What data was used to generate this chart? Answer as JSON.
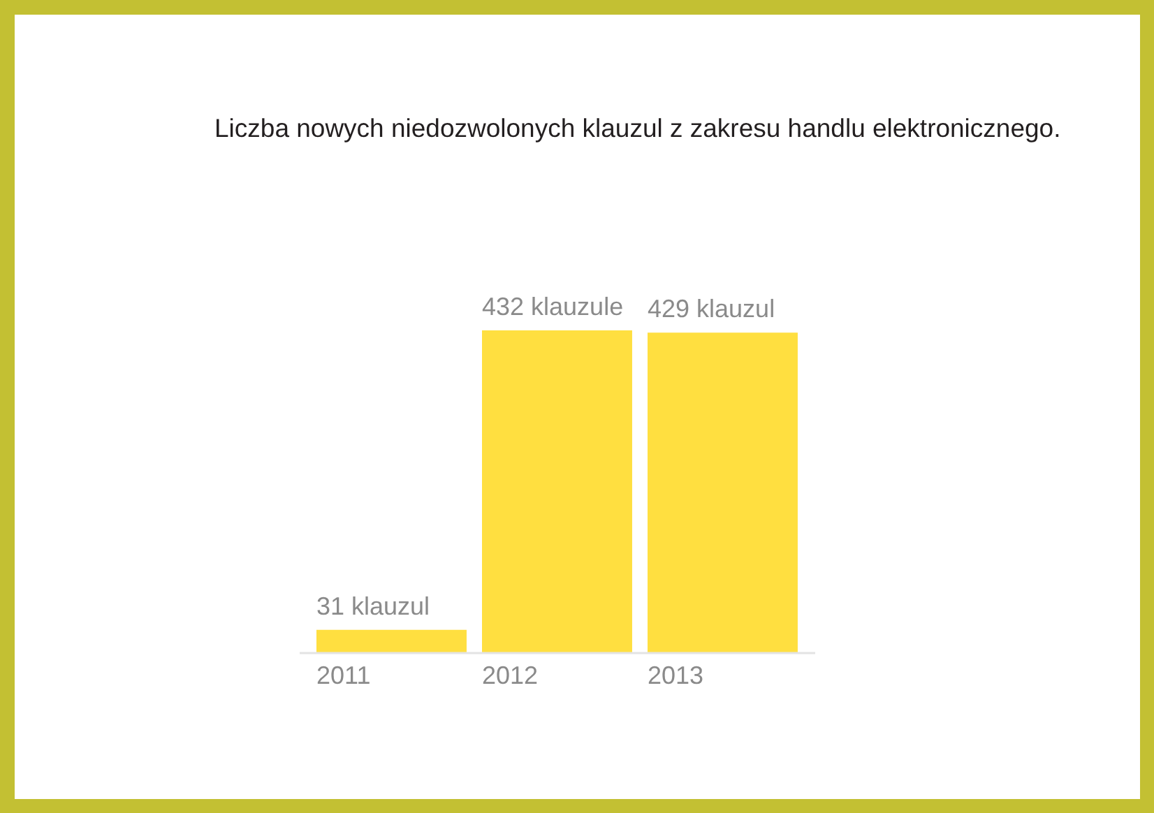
{
  "chart_data": {
    "type": "bar",
    "title": "Liczba nowych niedozwolonych klauzul z zakresu handlu elektronicznego.",
    "categories": [
      "2011",
      "2012",
      "2013"
    ],
    "values": [
      31,
      432,
      429
    ],
    "value_labels": [
      "31 klauzul",
      "432 klauzule",
      "429 klauzul"
    ],
    "color": "#ffdf40",
    "grid": false
  }
}
